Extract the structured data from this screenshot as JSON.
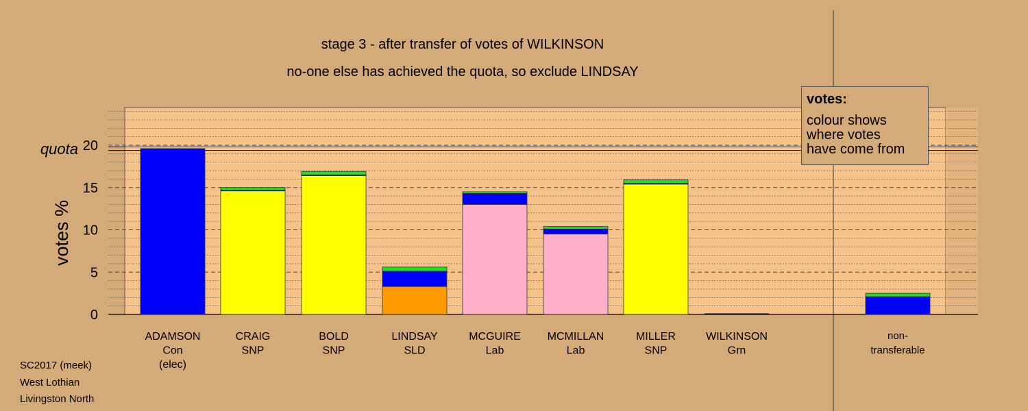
{
  "titles": {
    "line1": "stage 3 - after transfer of votes of WILKINSON",
    "line2": "no-one else has achieved the quota, so exclude LINDSAY"
  },
  "legend": {
    "heading": "votes:",
    "lines": [
      "colour shows",
      "where votes",
      "have come from"
    ]
  },
  "footer": {
    "line1": "SC2017 (meek)",
    "line2": "West Lothian",
    "line3": "Livingston North"
  },
  "chart_data": {
    "type": "bar",
    "stacked": true,
    "ylabel": "votes %",
    "ylim": [
      0,
      24.5
    ],
    "yticks": [
      0,
      5,
      10,
      15,
      20
    ],
    "quota": 19.6,
    "quota_label": "quota",
    "grid": "minor dotted lines every 1%, dashed at 5/10/15",
    "colors": {
      "background": "#d4aa78",
      "plot_area": "#f5c28a",
      "Con": "#0000ff",
      "SNP": "#ffff00",
      "SLD": "#ff9900",
      "Lab": "#ffb0c8",
      "Grn": "#00cc00"
    },
    "categories": [
      {
        "name": "ADAMSON",
        "party": "Con",
        "note": "(elec)"
      },
      {
        "name": "CRAIG",
        "party": "SNP",
        "note": ""
      },
      {
        "name": "BOLD",
        "party": "SNP",
        "note": ""
      },
      {
        "name": "LINDSAY",
        "party": "SLD",
        "note": ""
      },
      {
        "name": "MCGUIRE",
        "party": "Lab",
        "note": ""
      },
      {
        "name": "MCMILLAN",
        "party": "Lab",
        "note": ""
      },
      {
        "name": "MILLER",
        "party": "SNP",
        "note": ""
      },
      {
        "name": "WILKINSON",
        "party": "Grn",
        "note": ""
      }
    ],
    "nontransferable_label": [
      "non-",
      "transferable"
    ],
    "bars": [
      [
        {
          "color": "#0000ff",
          "value": 19.6
        }
      ],
      [
        {
          "color": "#ffff00",
          "value": 14.6
        },
        {
          "color": "#0000ff",
          "value": 0.1
        },
        {
          "color": "#22dd22",
          "value": 0.3
        }
      ],
      [
        {
          "color": "#ffff00",
          "value": 16.4
        },
        {
          "color": "#0000ff",
          "value": 0.1
        },
        {
          "color": "#22dd22",
          "value": 0.4
        }
      ],
      [
        {
          "color": "#ff9900",
          "value": 3.3
        },
        {
          "color": "#0000ff",
          "value": 1.8
        },
        {
          "color": "#22dd22",
          "value": 0.5
        }
      ],
      [
        {
          "color": "#ffb0c8",
          "value": 13.0
        },
        {
          "color": "#0000ff",
          "value": 1.3
        },
        {
          "color": "#22dd22",
          "value": 0.2
        }
      ],
      [
        {
          "color": "#ffb0c8",
          "value": 9.5
        },
        {
          "color": "#0000ff",
          "value": 0.6
        },
        {
          "color": "#22dd22",
          "value": 0.3
        }
      ],
      [
        {
          "color": "#ffff00",
          "value": 15.4
        },
        {
          "color": "#0000ff",
          "value": 0.1
        },
        {
          "color": "#22dd22",
          "value": 0.4
        }
      ],
      [],
      [
        {
          "color": "#0000ff",
          "value": 2.1
        },
        {
          "color": "#22dd22",
          "value": 0.4
        }
      ]
    ]
  }
}
